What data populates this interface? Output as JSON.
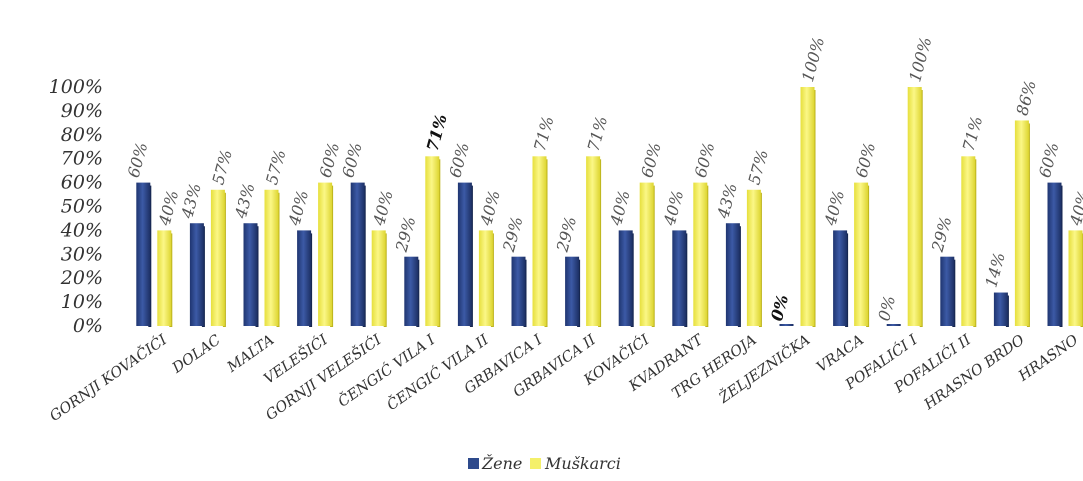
{
  "chart_data": {
    "type": "bar",
    "title": "",
    "xlabel": "",
    "ylabel": "",
    "ylim": [
      0,
      100
    ],
    "y_ticks": [
      "0%",
      "10%",
      "20%",
      "30%",
      "40%",
      "50%",
      "60%",
      "70%",
      "80%",
      "90%",
      "100%"
    ],
    "grid": false,
    "legend_position": "bottom",
    "categories": [
      "GORNJI KOVAČIĆI",
      "DOLAC",
      "MALTA",
      "VELEŠIĆI",
      "GORNJI VELEŠIĆI",
      "ČENGIĆ VILA I",
      "ČENGIĆ VILA II",
      "GRBAVICA I",
      "GRBAVICA II",
      "KOVAČIĆI",
      "KVADRANT",
      "TRG HEROJA",
      "ŽELJEZNIČKA",
      "VRACA",
      "POFALIĆI I",
      "POFALIĆI II",
      "HRASNO BRDO",
      "HRASNO"
    ],
    "series": [
      {
        "name": "Žene",
        "color": "#2e4a8c",
        "values": [
          60,
          43,
          43,
          40,
          60,
          29,
          60,
          29,
          29,
          40,
          40,
          43,
          0,
          40,
          0,
          29,
          14,
          60
        ]
      },
      {
        "name": "Muškarci",
        "color": "#f4f06a",
        "values": [
          40,
          57,
          57,
          60,
          40,
          71,
          40,
          71,
          71,
          60,
          60,
          57,
          100,
          60,
          100,
          71,
          86,
          40
        ]
      }
    ]
  }
}
